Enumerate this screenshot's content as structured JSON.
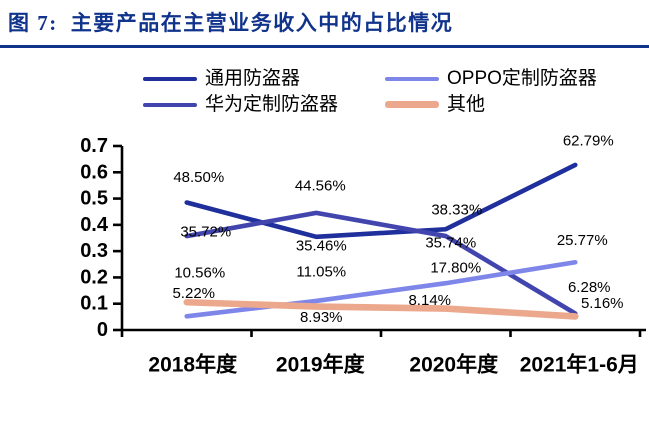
{
  "figure": {
    "title_prefix": "图 7:",
    "title_text": "主要产品在主营业务收入中的占比情况",
    "accent_color": "#10338C"
  },
  "legend": {
    "items": [
      {
        "id": "general",
        "label": "通用防盗器",
        "color": "#1F2F9B",
        "thickness": 4
      },
      {
        "id": "oppo",
        "label": "OPPO定制防盗器",
        "color": "#7F86E9",
        "thickness": 4
      },
      {
        "id": "huawei",
        "label": "华为定制防盗器",
        "color": "#4245AE",
        "thickness": 4
      },
      {
        "id": "other",
        "label": "其他",
        "color": "#ECA88C",
        "thickness": 7
      }
    ]
  },
  "chart_data": {
    "type": "line",
    "title": "主要产品在主营业务收入中的占比情况",
    "categories": [
      "2018年度",
      "2019年度",
      "2020年度",
      "2021年1-6月"
    ],
    "xlabel": "",
    "ylabel": "",
    "ylim": [
      0,
      0.7
    ],
    "yticks": [
      "0",
      "0.1",
      "0.2",
      "0.3",
      "0.4",
      "0.5",
      "0.6",
      "0.7"
    ],
    "grid": false,
    "legend_position": "top",
    "xlabel_dx": [
      6,
      4,
      8,
      4
    ],
    "series": [
      {
        "id": "general",
        "name": "通用防盗器",
        "color": "#1F2F9B",
        "stroke_width": 4.6,
        "values": [
          48.5,
          35.46,
          38.33,
          62.79
        ],
        "labels": [
          "48.50%",
          "35.46%",
          "38.33%",
          "62.79%"
        ],
        "label_offsets": [
          [
            12,
            -25
          ],
          [
            5,
            9
          ],
          [
            11,
            -19
          ],
          [
            13,
            -24
          ]
        ]
      },
      {
        "id": "huawei",
        "name": "华为定制防盗器",
        "color": "#4245AE",
        "stroke_width": 4.6,
        "values": [
          35.72,
          44.56,
          35.74,
          6.28
        ],
        "labels": [
          "35.72%",
          "44.56%",
          "35.74%",
          "6.28%"
        ],
        "label_offsets": [
          [
            19,
            -4
          ],
          [
            4,
            -27
          ],
          [
            5,
            7
          ],
          [
            14,
            -26
          ]
        ]
      },
      {
        "id": "oppo",
        "name": "OPPO定制防盗器",
        "color": "#7F86E9",
        "stroke_width": 4.6,
        "values": [
          5.22,
          11.05,
          17.8,
          25.77
        ],
        "labels": [
          "5.22%",
          "11.05%",
          "17.80%",
          "25.77%"
        ],
        "label_offsets": [
          [
            7,
            -23
          ],
          [
            5,
            -29
          ],
          [
            10,
            -15
          ],
          [
            7,
            -22
          ]
        ]
      },
      {
        "id": "other",
        "name": "其他",
        "color": "#ECA88C",
        "stroke_width": 6.6,
        "values": [
          10.56,
          8.93,
          8.14,
          5.16
        ],
        "labels": [
          "10.56%",
          "8.93%",
          "8.14%",
          "5.16%"
        ],
        "label_offsets": [
          [
            13,
            -29
          ],
          [
            5,
            11
          ],
          [
            -16,
            -8
          ],
          [
            27,
            -13
          ]
        ]
      }
    ]
  }
}
